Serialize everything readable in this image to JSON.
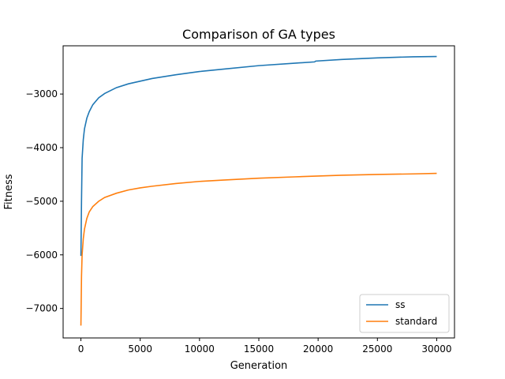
{
  "chart_data": {
    "type": "line",
    "title": "Comparison of GA types",
    "xlabel": "Generation",
    "ylabel": "Fitness",
    "xlim": [
      -1500,
      31500
    ],
    "ylim": [
      -7550,
      -2100
    ],
    "xticks": [
      0,
      5000,
      10000,
      15000,
      20000,
      25000,
      30000
    ],
    "yticks": [
      -7000,
      -6000,
      -5000,
      -4000,
      -3000
    ],
    "xtick_labels": [
      "0",
      "5000",
      "10000",
      "15000",
      "20000",
      "25000",
      "30000"
    ],
    "ytick_labels": [
      "−7000",
      "−6000",
      "−5000",
      "−4000",
      "−3000"
    ],
    "grid": false,
    "legend_position": "lower-right",
    "series": [
      {
        "name": "ss",
        "color": "#1f77b4",
        "x": [
          0,
          50,
          100,
          200,
          300,
          500,
          700,
          1000,
          1500,
          2000,
          3000,
          4000,
          5000,
          6000,
          8000,
          10000,
          12000,
          15000,
          18000,
          19700,
          19800,
          22000,
          25000,
          28000,
          30000
        ],
        "y": [
          -6020,
          -5000,
          -4200,
          -3850,
          -3650,
          -3450,
          -3330,
          -3200,
          -3070,
          -2990,
          -2880,
          -2810,
          -2760,
          -2710,
          -2640,
          -2580,
          -2535,
          -2470,
          -2425,
          -2400,
          -2385,
          -2355,
          -2325,
          -2305,
          -2300
        ]
      },
      {
        "name": "standard",
        "color": "#ff7f0e",
        "x": [
          0,
          50,
          100,
          200,
          300,
          500,
          700,
          1000,
          1500,
          2000,
          3000,
          4000,
          5000,
          6000,
          8000,
          10000,
          12000,
          15000,
          18000,
          20000,
          22000,
          25000,
          28000,
          30000
        ],
        "y": [
          -7320,
          -6400,
          -6000,
          -5700,
          -5520,
          -5320,
          -5200,
          -5100,
          -5000,
          -4930,
          -4850,
          -4790,
          -4750,
          -4720,
          -4670,
          -4630,
          -4605,
          -4570,
          -4545,
          -4530,
          -4515,
          -4500,
          -4490,
          -4480
        ]
      }
    ]
  }
}
